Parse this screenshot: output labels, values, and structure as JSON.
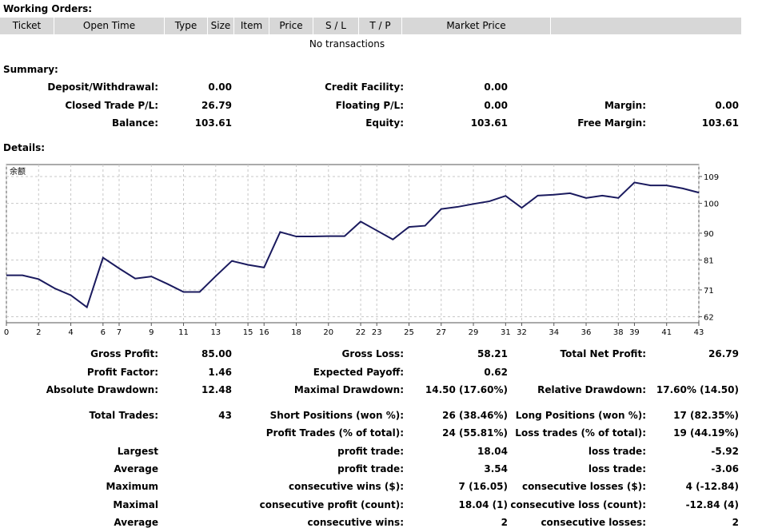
{
  "working_orders": {
    "title": "Working Orders:",
    "columns": [
      "Ticket",
      "Open Time",
      "Type",
      "Size",
      "Item",
      "Price",
      "S / L",
      "T / P",
      "Market Price",
      ""
    ],
    "empty_text": "No transactions"
  },
  "summary": {
    "title": "Summary:",
    "deposit_label": "Deposit/Withdrawal:",
    "deposit_value": "0.00",
    "credit_label": "Credit Facility:",
    "credit_value": "0.00",
    "closed_pl_label": "Closed Trade P/L:",
    "closed_pl_value": "26.79",
    "floating_pl_label": "Floating P/L:",
    "floating_pl_value": "0.00",
    "margin_label": "Margin:",
    "margin_value": "0.00",
    "balance_label": "Balance:",
    "balance_value": "103.61",
    "equity_label": "Equity:",
    "equity_value": "103.61",
    "free_margin_label": "Free Margin:",
    "free_margin_value": "103.61"
  },
  "details": {
    "title": "Details:"
  },
  "chart_data": {
    "type": "line",
    "title": "余额",
    "line_color": "#1a1a5e",
    "grid": true,
    "ylim": [
      60,
      113
    ],
    "yticks": [
      62,
      71,
      81,
      90,
      100,
      109
    ],
    "xticks": [
      0,
      2,
      4,
      6,
      7,
      9,
      11,
      13,
      15,
      16,
      18,
      20,
      22,
      23,
      25,
      27,
      29,
      31,
      32,
      34,
      36,
      38,
      39,
      41,
      43
    ],
    "x": [
      0,
      1,
      2,
      3,
      4,
      5,
      6,
      7,
      8,
      9,
      10,
      11,
      12,
      13,
      14,
      15,
      16,
      17,
      18,
      19,
      20,
      21,
      22,
      23,
      24,
      25,
      26,
      27,
      28,
      29,
      30,
      31,
      32,
      33,
      34,
      35,
      36,
      37,
      38,
      39,
      40,
      41,
      42,
      43
    ],
    "series": [
      {
        "values": [
          75.9,
          75.9,
          74.6,
          71.5,
          69.2,
          65.2,
          81.8,
          78.2,
          74.8,
          75.5,
          73.0,
          70.3,
          70.3,
          75.6,
          80.7,
          79.4,
          78.5,
          90.4,
          88.9,
          88.9,
          89.0,
          89.0,
          93.9,
          90.9,
          87.9,
          92.1,
          92.5,
          98.1,
          98.8,
          99.8,
          100.7,
          102.5,
          98.5,
          102.6,
          102.9,
          103.4,
          101.8,
          102.6,
          101.8,
          107.0,
          106.0,
          106.0,
          105.0,
          103.6
        ]
      }
    ]
  },
  "stats": {
    "gross_profit_label": "Gross Profit:",
    "gross_profit_value": "85.00",
    "gross_loss_label": "Gross Loss:",
    "gross_loss_value": "58.21",
    "total_net_label": "Total Net Profit:",
    "total_net_value": "26.79",
    "profit_factor_label": "Profit Factor:",
    "profit_factor_value": "1.46",
    "expected_payoff_label": "Expected Payoff:",
    "expected_payoff_value": "0.62",
    "abs_dd_label": "Absolute Drawdown:",
    "abs_dd_value": "12.48",
    "max_dd_label": "Maximal Drawdown:",
    "max_dd_value": "14.50 (17.60%)",
    "rel_dd_label": "Relative Drawdown:",
    "rel_dd_value": "17.60% (14.50)",
    "total_trades_label": "Total Trades:",
    "total_trades_value": "43",
    "short_pos_label": "Short Positions (won %):",
    "short_pos_value": "26 (38.46%)",
    "long_pos_label": "Long Positions (won %):",
    "long_pos_value": "17 (82.35%)",
    "profit_trades_label": "Profit Trades (% of total):",
    "profit_trades_value": "24 (55.81%)",
    "loss_trades_label": "Loss trades (% of total):",
    "loss_trades_value": "19 (44.19%)",
    "largest_label": "Largest",
    "largest_profit_label": "profit trade:",
    "largest_profit_value": "18.04",
    "largest_loss_label": "loss trade:",
    "largest_loss_value": "-5.92",
    "average_label": "Average",
    "average_profit_label": "profit trade:",
    "average_profit_value": "3.54",
    "average_loss_label": "loss trade:",
    "average_loss_value": "-3.06",
    "maximum_label": "Maximum",
    "max_wins_label": "consecutive wins ($):",
    "max_wins_value": "7 (16.05)",
    "max_losses_label": "consecutive losses ($):",
    "max_losses_value": "4 (-12.84)",
    "maximal_label": "Maximal",
    "maximal_profit_label": "consecutive profit (count):",
    "maximal_profit_value": "18.04 (1)",
    "maximal_loss_label": "consecutive loss (count):",
    "maximal_loss_value": "-12.84 (4)",
    "avg2_label": "Average",
    "avg_wins_label": "consecutive wins:",
    "avg_wins_value": "2",
    "avg_losses_label": "consecutive losses:",
    "avg_losses_value": "2"
  }
}
